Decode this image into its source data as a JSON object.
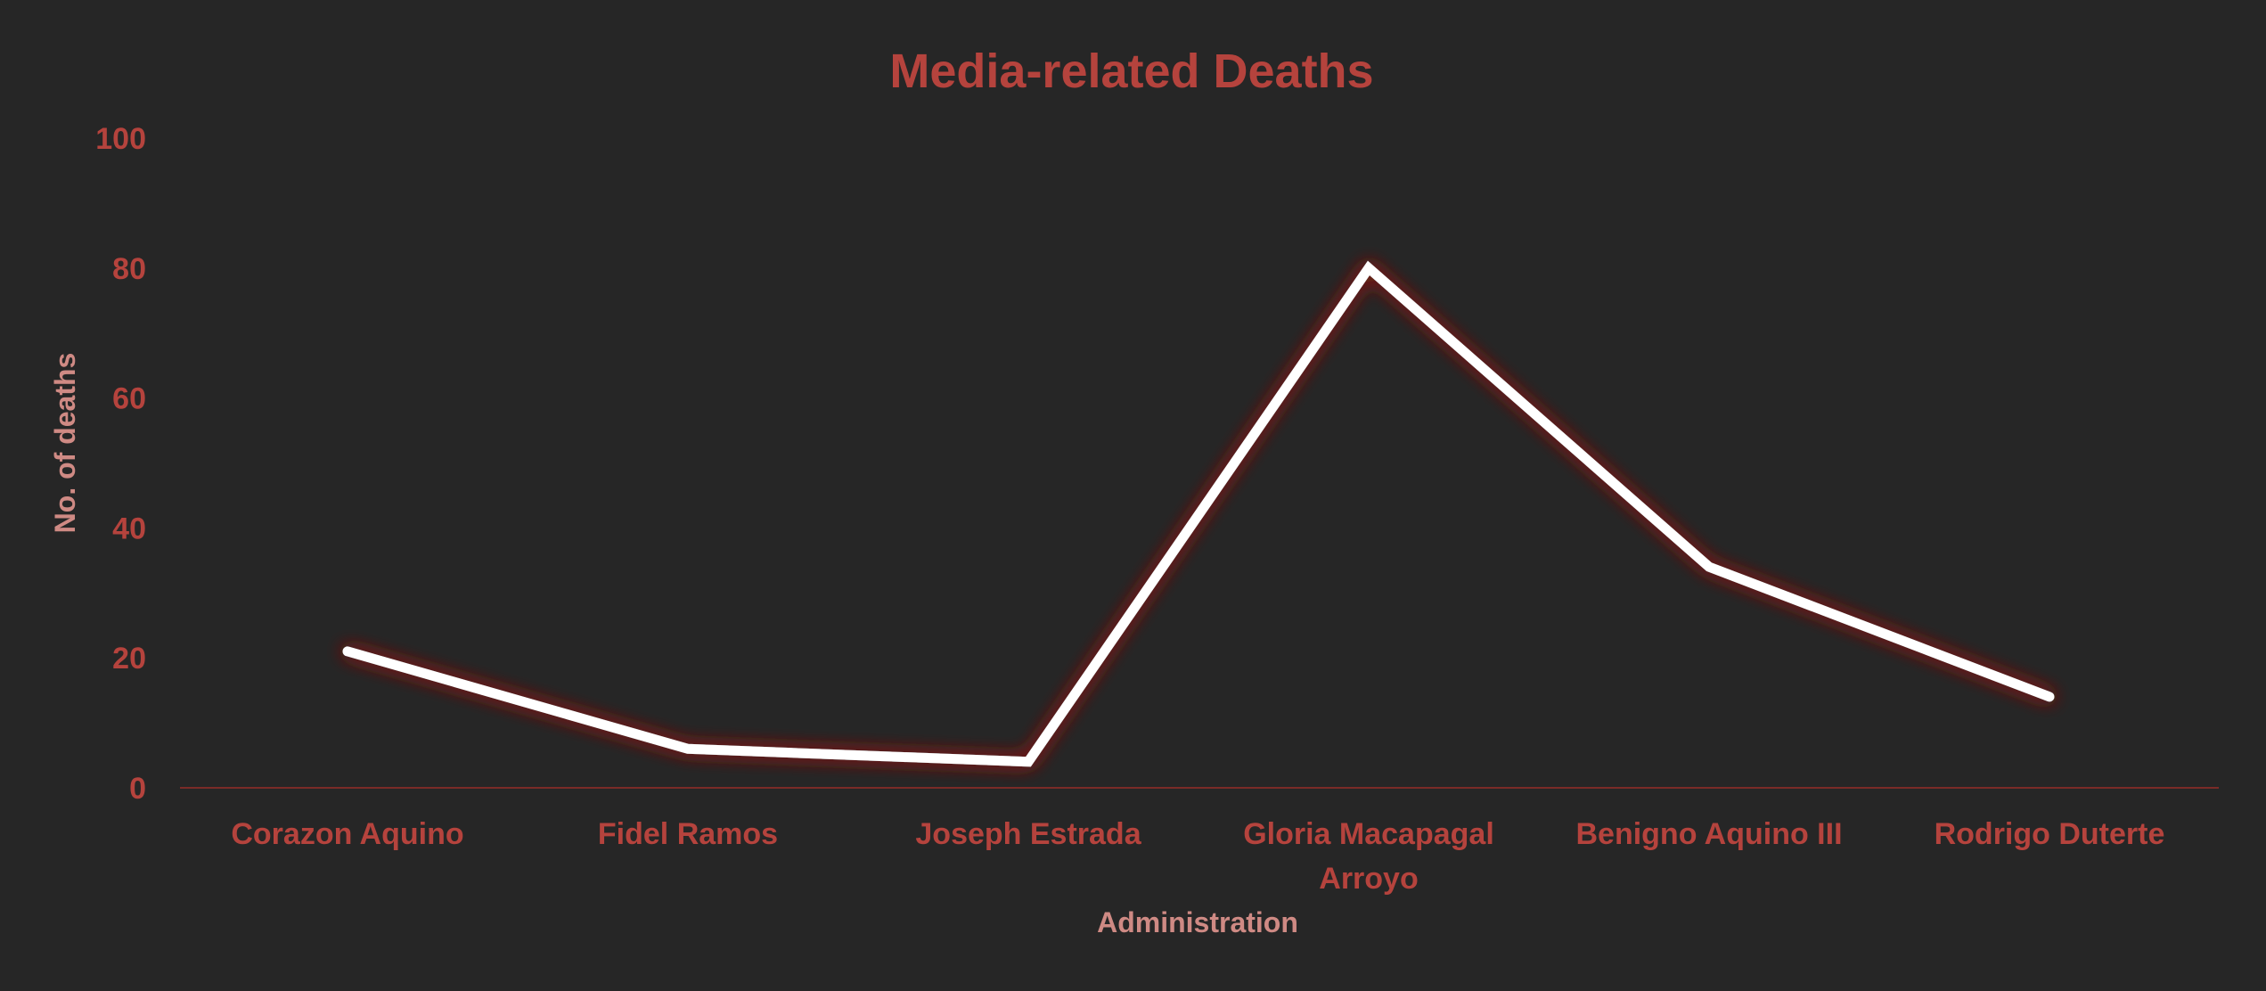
{
  "colors": {
    "background": "#262626",
    "text": "#b5433d",
    "axis_title": "#cf8a84",
    "line": "#ffffff",
    "glow": "#7a1e1a",
    "axis_line": "#7a2b27"
  },
  "chart_data": {
    "type": "line",
    "title": "Media-related Deaths",
    "xlabel": "Administration",
    "ylabel": "No. of deaths",
    "categories": [
      "Corazon Aquino",
      "Fidel Ramos",
      "Joseph Estrada",
      "Gloria Macapagal Arroyo",
      "Benigno Aquino III",
      "Rodrigo Duterte"
    ],
    "series": [
      {
        "values": [
          21,
          6,
          4,
          80,
          34,
          14
        ]
      }
    ],
    "ylim": [
      0,
      100
    ],
    "yticks": [
      0,
      20,
      40,
      60,
      80,
      100
    ],
    "grid": false,
    "legend": "none"
  }
}
